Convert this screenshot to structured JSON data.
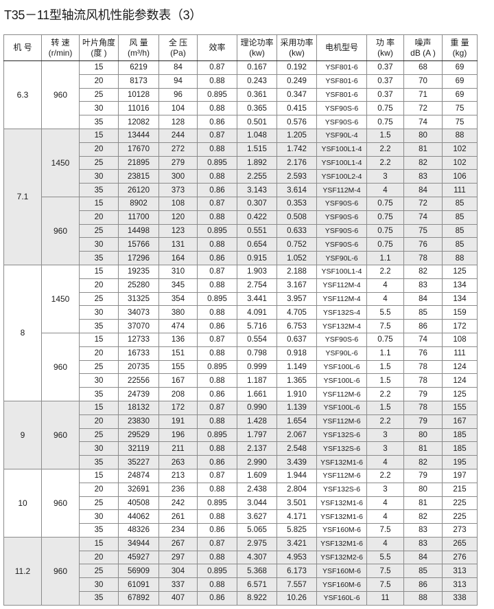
{
  "title": "T35－11型轴流风机性能参数表（3）",
  "headers": [
    [
      "机 号"
    ],
    [
      "转 速",
      "(r/min)"
    ],
    [
      "叶片角度",
      "(度 )"
    ],
    [
      "风 量",
      "(m³/h)"
    ],
    [
      "全 压",
      "(Pa)"
    ],
    [
      "效率"
    ],
    [
      "理论功率",
      "(kw)"
    ],
    [
      "采用功率",
      "(kw)"
    ],
    [
      "电机型号"
    ],
    [
      "功 率",
      "(kw)"
    ],
    [
      "噪声",
      "dB (A )"
    ],
    [
      "重 量",
      "(kg)"
    ]
  ],
  "colors": {
    "shaded_row": "#e9e9e9",
    "border": "#8a8a8a"
  },
  "groups": [
    {
      "machine_no": "6.3",
      "shaded": false,
      "speeds": [
        {
          "rpm": "960",
          "rows": [
            [
              "15",
              "6219",
              "84",
              "0.87",
              "0.167",
              "0.192",
              "YSF801-6",
              "0.37",
              "68",
              "69"
            ],
            [
              "20",
              "8173",
              "94",
              "0.88",
              "0.243",
              "0.249",
              "YSF801-6",
              "0.37",
              "70",
              "69"
            ],
            [
              "25",
              "10128",
              "96",
              "0.895",
              "0.361",
              "0.347",
              "YSF801-6",
              "0.37",
              "71",
              "69"
            ],
            [
              "30",
              "11016",
              "104",
              "0.88",
              "0.365",
              "0.415",
              "YSF90S-6",
              "0.75",
              "72",
              "75"
            ],
            [
              "35",
              "12082",
              "128",
              "0.86",
              "0.501",
              "0.576",
              "YSF90S-6",
              "0.75",
              "74",
              "75"
            ]
          ]
        }
      ]
    },
    {
      "machine_no": "7.1",
      "shaded": true,
      "speeds": [
        {
          "rpm": "1450",
          "rows": [
            [
              "15",
              "13444",
              "244",
              "0.87",
              "1.048",
              "1.205",
              "YSF90L-4",
              "1.5",
              "80",
              "88"
            ],
            [
              "20",
              "17670",
              "272",
              "0.88",
              "1.515",
              "1.742",
              "YSF100L1-4",
              "2.2",
              "81",
              "102"
            ],
            [
              "25",
              "21895",
              "279",
              "0.895",
              "1.892",
              "2.176",
              "YSF100L1-4",
              "2.2",
              "82",
              "102"
            ],
            [
              "30",
              "23815",
              "300",
              "0.88",
              "2.255",
              "2.593",
              "YSF100L2-4",
              "3",
              "83",
              "106"
            ],
            [
              "35",
              "26120",
              "373",
              "0.86",
              "3.143",
              "3.614",
              "YSF112M-4",
              "4",
              "84",
              "111"
            ]
          ]
        },
        {
          "rpm": "960",
          "rows": [
            [
              "15",
              "8902",
              "108",
              "0.87",
              "0.307",
              "0.353",
              "YSF90S-6",
              "0.75",
              "72",
              "85"
            ],
            [
              "20",
              "11700",
              "120",
              "0.88",
              "0.422",
              "0.508",
              "YSF90S-6",
              "0.75",
              "74",
              "85"
            ],
            [
              "25",
              "14498",
              "123",
              "0.895",
              "0.551",
              "0.633",
              "YSF90S-6",
              "0.75",
              "75",
              "85"
            ],
            [
              "30",
              "15766",
              "131",
              "0.88",
              "0.654",
              "0.752",
              "YSF90S-6",
              "0.75",
              "76",
              "85"
            ],
            [
              "35",
              "17296",
              "164",
              "0.86",
              "0.915",
              "1.052",
              "YSF90L-6",
              "1.1",
              "78",
              "88"
            ]
          ]
        }
      ]
    },
    {
      "machine_no": "8",
      "shaded": false,
      "speeds": [
        {
          "rpm": "1450",
          "rows": [
            [
              "15",
              "19235",
              "310",
              "0.87",
              "1.903",
              "2.188",
              "YSF100L1-4",
              "2.2",
              "82",
              "125"
            ],
            [
              "20",
              "25280",
              "345",
              "0.88",
              "2.754",
              "3.167",
              "YSF112M-4",
              "4",
              "83",
              "134"
            ],
            [
              "25",
              "31325",
              "354",
              "0.895",
              "3.441",
              "3.957",
              "YSF112M-4",
              "4",
              "84",
              "134"
            ],
            [
              "30",
              "34073",
              "380",
              "0.88",
              "4.091",
              "4.705",
              "YSF132S-4",
              "5.5",
              "85",
              "159"
            ],
            [
              "35",
              "37070",
              "474",
              "0.86",
              "5.716",
              "6.753",
              "YSF132M-4",
              "7.5",
              "86",
              "172"
            ]
          ]
        },
        {
          "rpm": "960",
          "rows": [
            [
              "15",
              "12733",
              "136",
              "0.87",
              "0.554",
              "0.637",
              "YSF90S-6",
              "0.75",
              "74",
              "108"
            ],
            [
              "20",
              "16733",
              "151",
              "0.88",
              "0.798",
              "0.918",
              "YSF90L-6",
              "1.1",
              "76",
              "111"
            ],
            [
              "25",
              "20735",
              "155",
              "0.895",
              "0.999",
              "1.149",
              "YSF100L-6",
              "1.5",
              "78",
              "124"
            ],
            [
              "30",
              "22556",
              "167",
              "0.88",
              "1.187",
              "1.365",
              "YSF100L-6",
              "1.5",
              "78",
              "124"
            ],
            [
              "35",
              "24739",
              "208",
              "0.86",
              "1.661",
              "1.910",
              "YSF112M-6",
              "2.2",
              "79",
              "125"
            ]
          ]
        }
      ]
    },
    {
      "machine_no": "9",
      "shaded": true,
      "speeds": [
        {
          "rpm": "960",
          "rows": [
            [
              "15",
              "18132",
              "172",
              "0.87",
              "0.990",
              "1.139",
              "YSF100L-6",
              "1.5",
              "78",
              "155"
            ],
            [
              "20",
              "23830",
              "191",
              "0.88",
              "1.428",
              "1.654",
              "YSF112M-6",
              "2.2",
              "79",
              "167"
            ],
            [
              "25",
              "29529",
              "196",
              "0.895",
              "1.797",
              "2.067",
              "YSF132S-6",
              "3",
              "80",
              "185"
            ],
            [
              "30",
              "32119",
              "211",
              "0.88",
              "2.137",
              "2.548",
              "YSF132S-6",
              "3",
              "81",
              "185"
            ],
            [
              "35",
              "35227",
              "263",
              "0.86",
              "2.990",
              "3.439",
              "YSF132M1-6",
              "4",
              "82",
              "195"
            ]
          ]
        }
      ]
    },
    {
      "machine_no": "10",
      "shaded": false,
      "speeds": [
        {
          "rpm": "960",
          "rows": [
            [
              "15",
              "24874",
              "213",
              "0.87",
              "1.609",
              "1.944",
              "YSF112M-6",
              "2.2",
              "79",
              "197"
            ],
            [
              "20",
              "32691",
              "236",
              "0.88",
              "2.438",
              "2.804",
              "YSF132S-6",
              "3",
              "80",
              "215"
            ],
            [
              "25",
              "40508",
              "242",
              "0.895",
              "3.044",
              "3.501",
              "YSF132M1-6",
              "4",
              "81",
              "225"
            ],
            [
              "30",
              "44062",
              "261",
              "0.88",
              "3.627",
              "4.171",
              "YSF132M1-6",
              "4",
              "82",
              "225"
            ],
            [
              "35",
              "48326",
              "234",
              "0.86",
              "5.065",
              "5.825",
              "YSF160M-6",
              "7.5",
              "83",
              "273"
            ]
          ]
        }
      ]
    },
    {
      "machine_no": "11.2",
      "shaded": true,
      "speeds": [
        {
          "rpm": "960",
          "rows": [
            [
              "15",
              "34944",
              "267",
              "0.87",
              "2.975",
              "3.421",
              "YSF132M1-6",
              "4",
              "83",
              "265"
            ],
            [
              "20",
              "45927",
              "297",
              "0.88",
              "4.307",
              "4.953",
              "YSF132M2-6",
              "5.5",
              "84",
              "276"
            ],
            [
              "25",
              "56909",
              "304",
              "0.895",
              "5.368",
              "6.173",
              "YSF160M-6",
              "7.5",
              "85",
              "313"
            ],
            [
              "30",
              "61091",
              "337",
              "0.88",
              "6.571",
              "7.557",
              "YSF160M-6",
              "7.5",
              "86",
              "313"
            ],
            [
              "35",
              "67892",
              "407",
              "0.86",
              "8.922",
              "10.26",
              "YSF160L-6",
              "11",
              "88",
              "338"
            ]
          ]
        }
      ]
    }
  ]
}
